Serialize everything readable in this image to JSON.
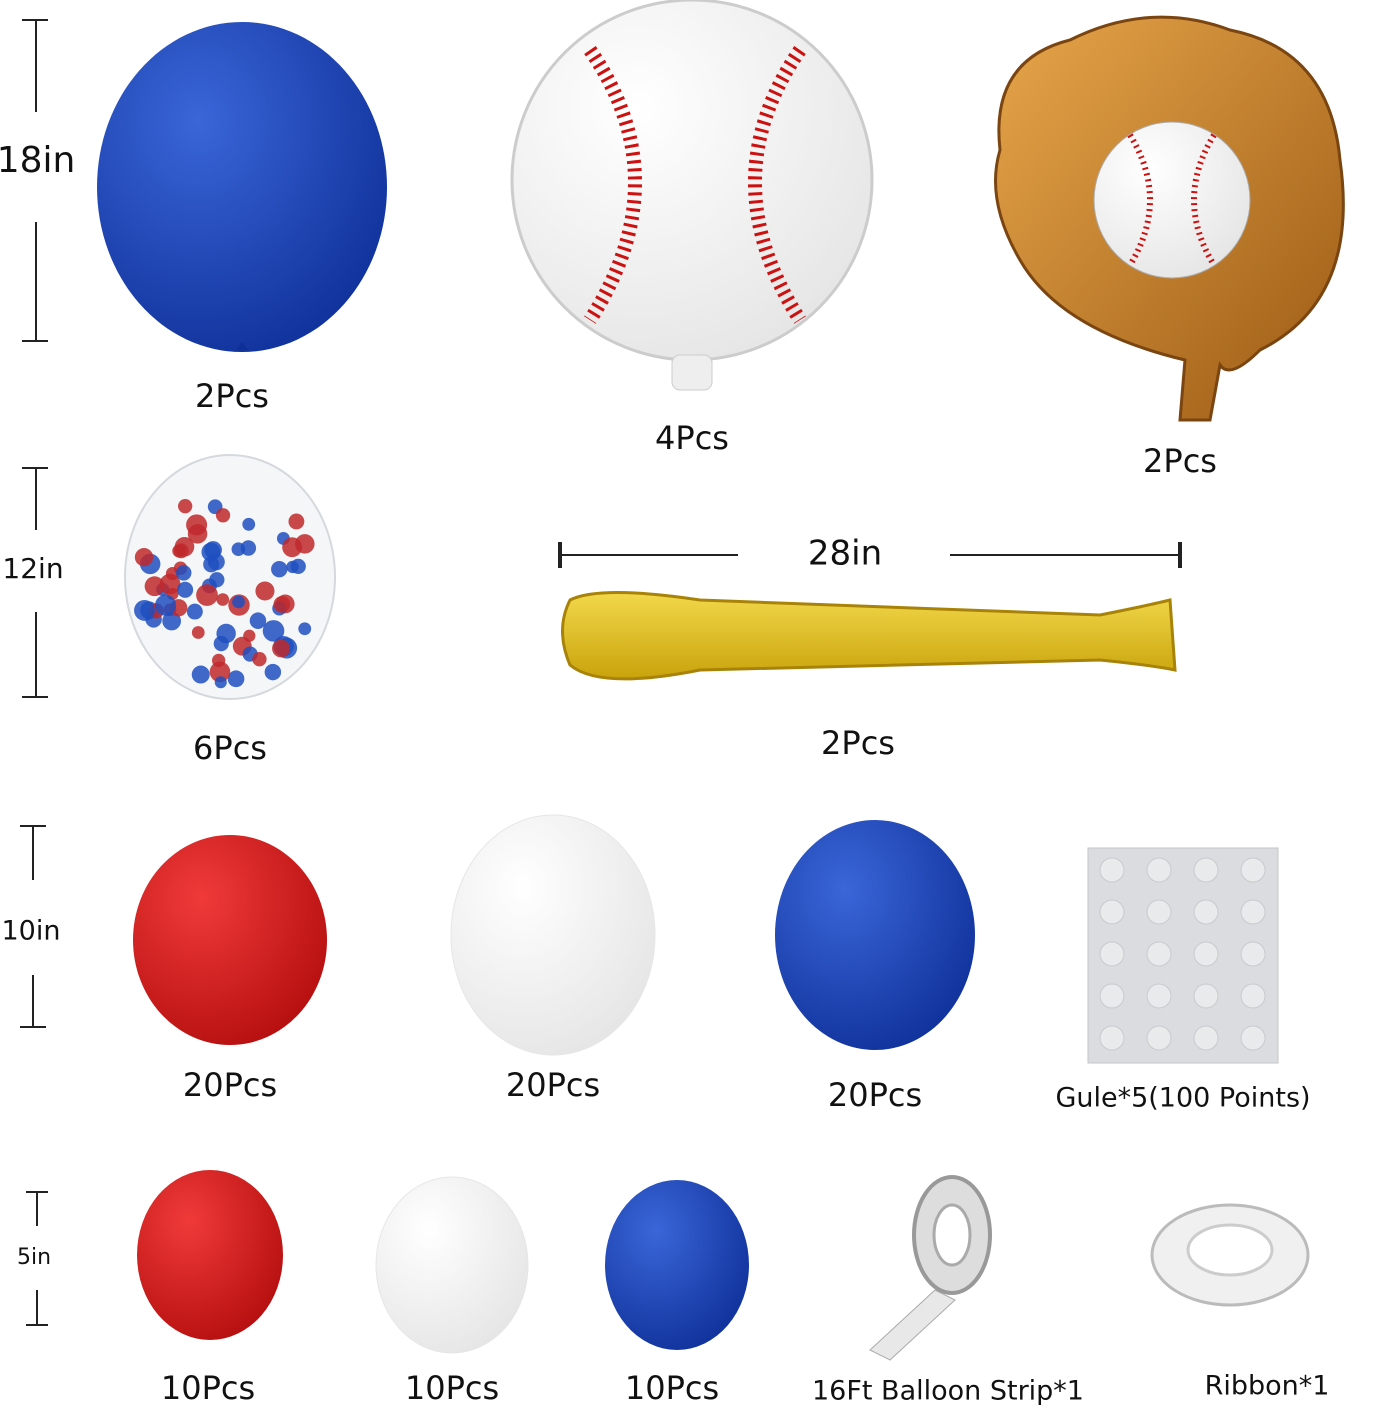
{
  "size_labels": [
    "18in",
    "12in",
    "10in",
    "5in"
  ],
  "bat_length": "28in",
  "items": [
    {
      "label": "2Pcs"
    },
    {
      "label": "4Pcs"
    },
    {
      "label": "2Pcs"
    },
    {
      "label": "6Pcs"
    },
    {
      "label": "2Pcs"
    },
    {
      "label": "20Pcs"
    },
    {
      "label": "20Pcs"
    },
    {
      "label": "20Pcs"
    },
    {
      "label": "Gule*5(100 Points)"
    },
    {
      "label": "10Pcs"
    },
    {
      "label": "10Pcs"
    },
    {
      "label": "10Pcs"
    },
    {
      "label": "16Ft Balloon Strip*1"
    },
    {
      "label": "Ribbon*1"
    }
  ]
}
